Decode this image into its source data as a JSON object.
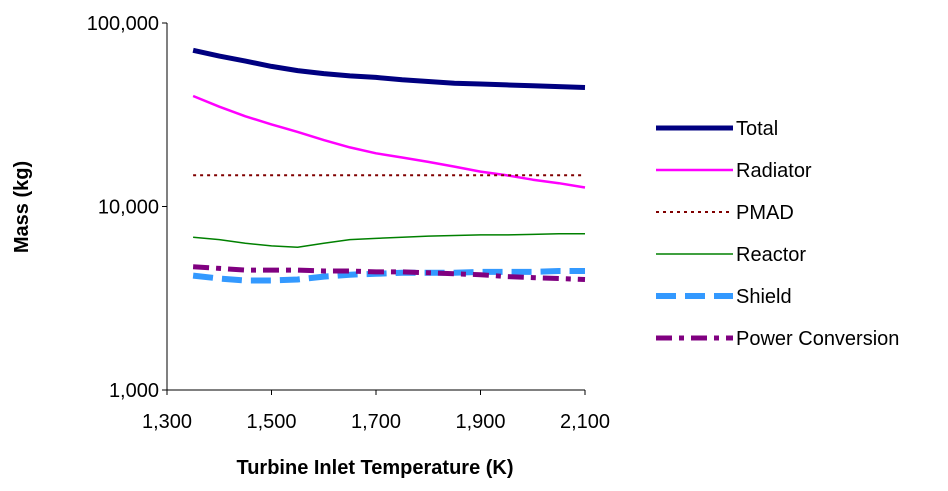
{
  "chart_data": {
    "type": "line",
    "title": "",
    "xlabel": "Turbine Inlet Temperature (K)",
    "ylabel": "Mass (kg)",
    "xlim": [
      1300,
      2100
    ],
    "ylim": [
      1000,
      100000
    ],
    "yscale": "log",
    "grid": false,
    "legend_position": "right",
    "x_ticks": [
      1300,
      1500,
      1700,
      1900,
      2100
    ],
    "x_tick_labels": [
      "1,300",
      "1,500",
      "1,700",
      "1,900",
      "2,100"
    ],
    "y_ticks": [
      1000,
      10000,
      100000
    ],
    "y_tick_labels": [
      "1,000",
      "10,000",
      "100,000"
    ],
    "x": [
      1350,
      1400,
      1450,
      1500,
      1550,
      1600,
      1650,
      1700,
      1750,
      1800,
      1850,
      1900,
      1950,
      2000,
      2050,
      2100
    ],
    "series": [
      {
        "name": "Total",
        "color": "#000080",
        "style": "solid-thick",
        "values": [
          71000,
          66000,
          62000,
          58000,
          55000,
          53000,
          51500,
          50500,
          49000,
          48000,
          47000,
          46500,
          46000,
          45500,
          45000,
          44500
        ]
      },
      {
        "name": "Radiator",
        "color": "#ff00ff",
        "style": "solid",
        "values": [
          40000,
          35000,
          31000,
          28000,
          25500,
          23000,
          21000,
          19500,
          18500,
          17500,
          16500,
          15500,
          14800,
          14000,
          13400,
          12700
        ]
      },
      {
        "name": "PMAD",
        "color": "#800000",
        "style": "dotted",
        "values": [
          14800,
          14800,
          14800,
          14800,
          14800,
          14800,
          14800,
          14800,
          14800,
          14800,
          14800,
          14800,
          14800,
          14800,
          14800,
          14800
        ]
      },
      {
        "name": "Reactor",
        "color": "#008000",
        "style": "solid-thin",
        "values": [
          6800,
          6600,
          6300,
          6100,
          6000,
          6300,
          6600,
          6700,
          6800,
          6900,
          6950,
          7000,
          7000,
          7050,
          7100,
          7100
        ]
      },
      {
        "name": "Shield",
        "color": "#3399ff",
        "style": "dashed-thick",
        "values": [
          4200,
          4050,
          3950,
          3950,
          4000,
          4150,
          4250,
          4300,
          4350,
          4350,
          4350,
          4400,
          4400,
          4400,
          4450,
          4450
        ]
      },
      {
        "name": "Power Conversion",
        "color": "#800080",
        "style": "dashdot",
        "values": [
          4700,
          4600,
          4500,
          4500,
          4500,
          4450,
          4450,
          4400,
          4400,
          4350,
          4300,
          4250,
          4150,
          4100,
          4050,
          4000
        ]
      }
    ]
  }
}
